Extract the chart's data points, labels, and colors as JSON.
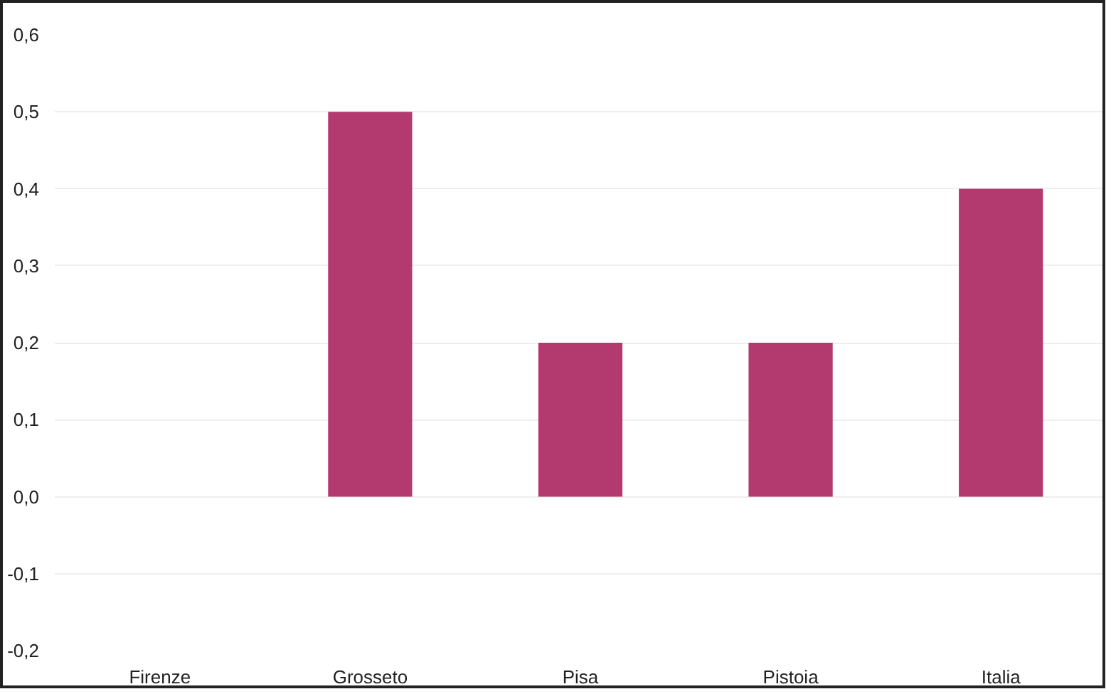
{
  "chart_data": {
    "type": "bar",
    "categories": [
      "Firenze",
      "Grosseto",
      "Pisa",
      "Pistoia",
      "Italia"
    ],
    "values": [
      0.0,
      0.5,
      0.2,
      0.2,
      0.4
    ],
    "color": "#b33a6e",
    "ylim": [
      -0.2,
      0.6
    ],
    "yticks": [
      {
        "value": -0.2,
        "label": "-0,2"
      },
      {
        "value": -0.1,
        "label": "-0,1"
      },
      {
        "value": 0.0,
        "label": "0,0"
      },
      {
        "value": 0.1,
        "label": "0,1"
      },
      {
        "value": 0.2,
        "label": "0,2"
      },
      {
        "value": 0.3,
        "label": "0,3"
      },
      {
        "value": 0.4,
        "label": "0,4"
      },
      {
        "value": 0.5,
        "label": "0,5"
      },
      {
        "value": 0.6,
        "label": "0,6"
      }
    ],
    "grid": "y"
  }
}
